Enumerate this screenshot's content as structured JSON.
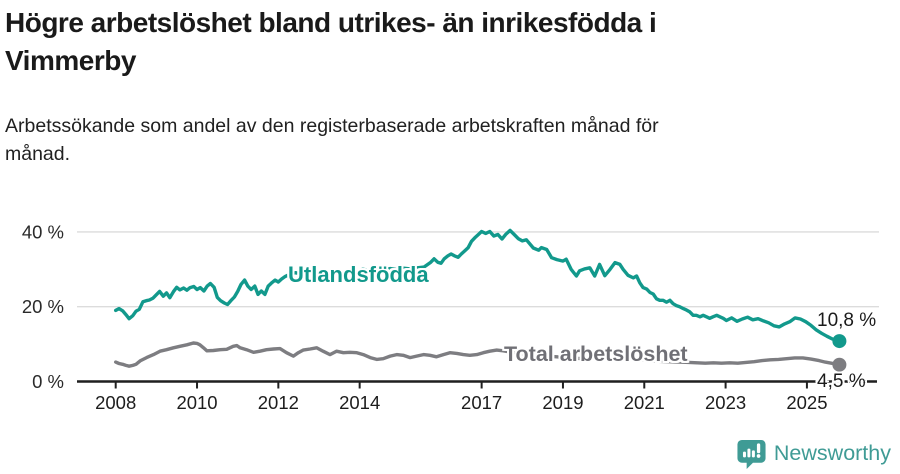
{
  "header": {
    "title": "Högre arbetslöshet bland utrikes- än inrikesfödda i Vimmerby",
    "title_lines": [
      "Högre arbetslöshet bland utrikes- än inrikesfödda i",
      "Vimmerby"
    ],
    "subtitle": "Arbetssökande som andel av den registerbaserade arbetskraften månad för månad.",
    "subtitle_lines": [
      "Arbetssökande som andel av den registerbaserade arbetskraften månad för",
      "månad."
    ]
  },
  "footer": {
    "brand": "Newsworthy",
    "brand_color": "#3f9b95"
  },
  "chart_data": {
    "type": "line",
    "unit": "%",
    "grid": "horizontal-only",
    "legend": "inline-labels-on-lines",
    "ylim": [
      0,
      45
    ],
    "xlim": [
      2007.1,
      2026.7
    ],
    "yticks": [
      {
        "value": 0,
        "label": "0 %"
      },
      {
        "value": 20,
        "label": "20 %"
      },
      {
        "value": 40,
        "label": "40 %"
      }
    ],
    "xticks": [
      {
        "value": 2008,
        "label": "2008"
      },
      {
        "value": 2010,
        "label": "2010"
      },
      {
        "value": 2012,
        "label": "2012"
      },
      {
        "value": 2014,
        "label": "2014"
      },
      {
        "value": 2017,
        "label": "2017"
      },
      {
        "value": 2019,
        "label": "2019"
      },
      {
        "value": 2021,
        "label": "2021"
      },
      {
        "value": 2023,
        "label": "2023"
      },
      {
        "value": 2025,
        "label": "2025"
      }
    ],
    "series": [
      {
        "id": "utlandsfodda",
        "name": "Utlandsfödda",
        "color": "#12998c",
        "end_value": 10.8,
        "end_label": "10,8 %",
        "points": [
          [
            2008.0,
            19.0
          ],
          [
            2008.08,
            19.5
          ],
          [
            2008.17,
            18.9
          ],
          [
            2008.25,
            17.9
          ],
          [
            2008.33,
            16.8
          ],
          [
            2008.42,
            17.6
          ],
          [
            2008.5,
            18.8
          ],
          [
            2008.58,
            19.3
          ],
          [
            2008.67,
            21.3
          ],
          [
            2008.75,
            21.6
          ],
          [
            2008.83,
            21.8
          ],
          [
            2008.92,
            22.3
          ],
          [
            2009.0,
            23.2
          ],
          [
            2009.08,
            24.1
          ],
          [
            2009.17,
            22.8
          ],
          [
            2009.25,
            23.7
          ],
          [
            2009.33,
            22.4
          ],
          [
            2009.42,
            24.0
          ],
          [
            2009.5,
            25.2
          ],
          [
            2009.58,
            24.5
          ],
          [
            2009.67,
            25.0
          ],
          [
            2009.75,
            24.4
          ],
          [
            2009.83,
            25.1
          ],
          [
            2009.92,
            25.4
          ],
          [
            2010.0,
            24.6
          ],
          [
            2010.08,
            25.1
          ],
          [
            2010.17,
            24.2
          ],
          [
            2010.25,
            25.5
          ],
          [
            2010.33,
            26.2
          ],
          [
            2010.42,
            25.2
          ],
          [
            2010.5,
            22.5
          ],
          [
            2010.58,
            21.6
          ],
          [
            2010.67,
            21.0
          ],
          [
            2010.75,
            20.6
          ],
          [
            2010.83,
            21.6
          ],
          [
            2010.92,
            22.6
          ],
          [
            2011.0,
            24.1
          ],
          [
            2011.08,
            25.9
          ],
          [
            2011.17,
            27.1
          ],
          [
            2011.25,
            25.5
          ],
          [
            2011.33,
            24.6
          ],
          [
            2011.42,
            25.5
          ],
          [
            2011.5,
            23.3
          ],
          [
            2011.58,
            24.2
          ],
          [
            2011.67,
            23.3
          ],
          [
            2011.75,
            25.5
          ],
          [
            2011.83,
            26.3
          ],
          [
            2011.92,
            27.1
          ],
          [
            2012.0,
            26.6
          ],
          [
            2012.08,
            27.4
          ],
          [
            2012.17,
            28.1
          ],
          [
            2012.25,
            28.5
          ],
          [
            2012.42,
            29.1
          ],
          [
            2012.58,
            28.7
          ],
          [
            2012.75,
            29.3
          ],
          [
            2012.92,
            28.9
          ],
          [
            2013.08,
            29.4
          ],
          [
            2013.25,
            29.1
          ],
          [
            2013.42,
            29.6
          ],
          [
            2013.58,
            29.3
          ],
          [
            2013.75,
            29.8
          ],
          [
            2013.92,
            29.5
          ],
          [
            2014.08,
            30.0
          ],
          [
            2014.25,
            29.7
          ],
          [
            2014.42,
            30.1
          ],
          [
            2014.58,
            29.8
          ],
          [
            2014.75,
            30.2
          ],
          [
            2014.92,
            29.9
          ],
          [
            2015.08,
            30.3
          ],
          [
            2015.25,
            30.1
          ],
          [
            2015.42,
            30.4
          ],
          [
            2015.58,
            30.6
          ],
          [
            2015.75,
            31.9
          ],
          [
            2015.83,
            32.8
          ],
          [
            2015.92,
            31.9
          ],
          [
            2016.0,
            31.6
          ],
          [
            2016.08,
            32.8
          ],
          [
            2016.17,
            33.6
          ],
          [
            2016.25,
            34.1
          ],
          [
            2016.33,
            33.6
          ],
          [
            2016.42,
            33.2
          ],
          [
            2016.5,
            34.1
          ],
          [
            2016.58,
            34.9
          ],
          [
            2016.67,
            35.8
          ],
          [
            2016.75,
            37.5
          ],
          [
            2016.83,
            38.4
          ],
          [
            2016.92,
            39.3
          ],
          [
            2017.0,
            40.1
          ],
          [
            2017.1,
            39.6
          ],
          [
            2017.2,
            40.1
          ],
          [
            2017.3,
            38.9
          ],
          [
            2017.4,
            39.3
          ],
          [
            2017.5,
            38.1
          ],
          [
            2017.6,
            39.4
          ],
          [
            2017.7,
            40.4
          ],
          [
            2017.8,
            39.3
          ],
          [
            2017.9,
            38.2
          ],
          [
            2018.0,
            37.6
          ],
          [
            2018.1,
            37.9
          ],
          [
            2018.27,
            35.7
          ],
          [
            2018.4,
            35.1
          ],
          [
            2018.47,
            35.8
          ],
          [
            2018.6,
            35.3
          ],
          [
            2018.72,
            33.1
          ],
          [
            2018.85,
            32.6
          ],
          [
            2019.0,
            32.2
          ],
          [
            2019.08,
            32.7
          ],
          [
            2019.2,
            30.0
          ],
          [
            2019.33,
            28.2
          ],
          [
            2019.41,
            29.6
          ],
          [
            2019.53,
            30.1
          ],
          [
            2019.66,
            30.4
          ],
          [
            2019.78,
            28.2
          ],
          [
            2019.9,
            31.3
          ],
          [
            2020.03,
            28.3
          ],
          [
            2020.16,
            30.0
          ],
          [
            2020.28,
            31.8
          ],
          [
            2020.4,
            31.3
          ],
          [
            2020.48,
            30.0
          ],
          [
            2020.6,
            28.4
          ],
          [
            2020.73,
            27.7
          ],
          [
            2020.81,
            28.2
          ],
          [
            2020.89,
            26.4
          ],
          [
            2020.97,
            25.1
          ],
          [
            2021.06,
            24.7
          ],
          [
            2021.14,
            23.8
          ],
          [
            2021.22,
            23.4
          ],
          [
            2021.3,
            22.1
          ],
          [
            2021.38,
            21.7
          ],
          [
            2021.46,
            21.7
          ],
          [
            2021.55,
            21.2
          ],
          [
            2021.63,
            21.7
          ],
          [
            2021.71,
            20.8
          ],
          [
            2021.79,
            20.3
          ],
          [
            2021.87,
            20.0
          ],
          [
            2021.96,
            19.5
          ],
          [
            2022.04,
            19.1
          ],
          [
            2022.12,
            18.6
          ],
          [
            2022.2,
            17.7
          ],
          [
            2022.28,
            17.7
          ],
          [
            2022.37,
            17.3
          ],
          [
            2022.45,
            17.7
          ],
          [
            2022.53,
            17.3
          ],
          [
            2022.61,
            16.9
          ],
          [
            2022.69,
            17.3
          ],
          [
            2022.78,
            17.7
          ],
          [
            2022.86,
            17.3
          ],
          [
            2022.94,
            16.9
          ],
          [
            2023.02,
            16.3
          ],
          [
            2023.15,
            17.0
          ],
          [
            2023.28,
            16.1
          ],
          [
            2023.41,
            16.7
          ],
          [
            2023.54,
            17.2
          ],
          [
            2023.67,
            16.5
          ],
          [
            2023.8,
            16.8
          ],
          [
            2023.93,
            16.2
          ],
          [
            2024.06,
            15.7
          ],
          [
            2024.19,
            14.9
          ],
          [
            2024.32,
            14.6
          ],
          [
            2024.45,
            15.4
          ],
          [
            2024.58,
            16.0
          ],
          [
            2024.71,
            17.0
          ],
          [
            2024.84,
            16.7
          ],
          [
            2024.97,
            16.0
          ],
          [
            2025.1,
            15.0
          ],
          [
            2025.23,
            13.8
          ],
          [
            2025.36,
            12.9
          ],
          [
            2025.49,
            12.1
          ],
          [
            2025.62,
            11.4
          ],
          [
            2025.8,
            10.8
          ]
        ]
      },
      {
        "id": "total",
        "name": "Total arbetslöshet",
        "color": "#7d7d81",
        "end_value": 4.5,
        "end_label": "4,5 %",
        "points": [
          [
            2008.0,
            5.2
          ],
          [
            2008.08,
            4.8
          ],
          [
            2008.17,
            4.6
          ],
          [
            2008.25,
            4.3
          ],
          [
            2008.33,
            4.1
          ],
          [
            2008.42,
            4.3
          ],
          [
            2008.5,
            4.6
          ],
          [
            2008.6,
            5.5
          ],
          [
            2008.76,
            6.4
          ],
          [
            2008.93,
            7.2
          ],
          [
            2009.09,
            8.1
          ],
          [
            2009.25,
            8.5
          ],
          [
            2009.42,
            9.0
          ],
          [
            2009.58,
            9.4
          ],
          [
            2009.75,
            9.8
          ],
          [
            2009.91,
            10.3
          ],
          [
            2010.0,
            10.2
          ],
          [
            2010.07,
            9.8
          ],
          [
            2010.16,
            9.0
          ],
          [
            2010.24,
            8.2
          ],
          [
            2010.4,
            8.3
          ],
          [
            2010.57,
            8.5
          ],
          [
            2010.73,
            8.6
          ],
          [
            2010.89,
            9.4
          ],
          [
            2010.98,
            9.6
          ],
          [
            2011.06,
            9.0
          ],
          [
            2011.22,
            8.5
          ],
          [
            2011.39,
            7.8
          ],
          [
            2011.55,
            8.1
          ],
          [
            2011.71,
            8.5
          ],
          [
            2011.88,
            8.7
          ],
          [
            2012.04,
            8.8
          ],
          [
            2012.2,
            7.7
          ],
          [
            2012.37,
            6.8
          ],
          [
            2012.49,
            7.7
          ],
          [
            2012.61,
            8.4
          ],
          [
            2012.78,
            8.7
          ],
          [
            2012.94,
            9.0
          ],
          [
            2013.1,
            8.1
          ],
          [
            2013.27,
            7.2
          ],
          [
            2013.43,
            8.1
          ],
          [
            2013.6,
            7.7
          ],
          [
            2013.76,
            7.8
          ],
          [
            2013.93,
            7.7
          ],
          [
            2014.09,
            7.2
          ],
          [
            2014.26,
            6.4
          ],
          [
            2014.42,
            5.9
          ],
          [
            2014.58,
            6.1
          ],
          [
            2014.75,
            6.8
          ],
          [
            2014.91,
            7.2
          ],
          [
            2015.07,
            7.0
          ],
          [
            2015.24,
            6.4
          ],
          [
            2015.4,
            6.8
          ],
          [
            2015.57,
            7.2
          ],
          [
            2015.73,
            7.0
          ],
          [
            2015.89,
            6.6
          ],
          [
            2016.06,
            7.2
          ],
          [
            2016.22,
            7.7
          ],
          [
            2016.39,
            7.5
          ],
          [
            2016.55,
            7.2
          ],
          [
            2016.71,
            7.0
          ],
          [
            2016.88,
            7.2
          ],
          [
            2017.04,
            7.7
          ],
          [
            2017.2,
            8.1
          ],
          [
            2017.37,
            8.4
          ],
          [
            2017.53,
            8.2
          ],
          [
            2017.7,
            7.9
          ],
          [
            2017.9,
            7.6
          ],
          [
            2018.1,
            7.3
          ],
          [
            2018.35,
            7.0
          ],
          [
            2018.6,
            6.8
          ],
          [
            2018.85,
            6.6
          ],
          [
            2019.1,
            6.4
          ],
          [
            2019.35,
            6.2
          ],
          [
            2019.6,
            6.0
          ],
          [
            2019.85,
            6.1
          ],
          [
            2020.1,
            6.3
          ],
          [
            2020.35,
            6.2
          ],
          [
            2020.6,
            6.0
          ],
          [
            2020.85,
            5.8
          ],
          [
            2021.1,
            5.6
          ],
          [
            2021.35,
            5.4
          ],
          [
            2021.6,
            5.3
          ],
          [
            2021.85,
            5.2
          ],
          [
            2022.1,
            5.1
          ],
          [
            2022.3,
            5.0
          ],
          [
            2022.5,
            4.9
          ],
          [
            2022.7,
            5.0
          ],
          [
            2022.9,
            4.9
          ],
          [
            2023.1,
            5.0
          ],
          [
            2023.3,
            4.9
          ],
          [
            2023.5,
            5.1
          ],
          [
            2023.7,
            5.3
          ],
          [
            2023.9,
            5.6
          ],
          [
            2024.1,
            5.8
          ],
          [
            2024.3,
            5.9
          ],
          [
            2024.5,
            6.1
          ],
          [
            2024.7,
            6.3
          ],
          [
            2024.9,
            6.3
          ],
          [
            2025.1,
            6.0
          ],
          [
            2025.3,
            5.6
          ],
          [
            2025.45,
            5.2
          ],
          [
            2025.6,
            4.9
          ],
          [
            2025.8,
            4.5
          ]
        ]
      }
    ]
  }
}
